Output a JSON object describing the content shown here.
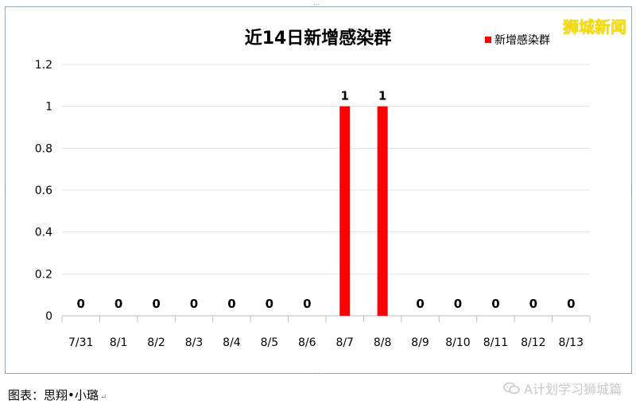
{
  "chart_data": {
    "type": "bar",
    "title": "近14日新增感染群",
    "categories": [
      "7/31",
      "8/1",
      "8/2",
      "8/3",
      "8/4",
      "8/5",
      "8/6",
      "8/7",
      "8/8",
      "8/9",
      "8/10",
      "8/11",
      "8/12",
      "8/13"
    ],
    "series": [
      {
        "name": "新增感染群",
        "values": [
          0,
          0,
          0,
          0,
          0,
          0,
          0,
          1,
          1,
          0,
          0,
          0,
          0,
          0
        ],
        "color": "#ff0000"
      }
    ],
    "data_labels": [
      "0",
      "0",
      "0",
      "0",
      "0",
      "0",
      "0",
      "1",
      "1",
      "0",
      "0",
      "0",
      "0",
      "0"
    ],
    "ylim": [
      0,
      1.2
    ],
    "yticks": [
      "0",
      "0.2",
      "0.4",
      "0.6",
      "0.8",
      "1",
      "1.2"
    ],
    "xlabel": "",
    "ylabel": "",
    "grid": true,
    "legend_position": "top-right"
  },
  "legend": {
    "label": "新增感染群"
  },
  "watermark": {
    "text": "狮城新闻",
    "color": "#f7e000"
  },
  "footer": {
    "caption": "图表：思翔•小璐",
    "return_mark": "↵",
    "source": "A计划学习狮城篇",
    "icon": "wechat-icon"
  },
  "handles": {
    "glyph": "⋯"
  }
}
